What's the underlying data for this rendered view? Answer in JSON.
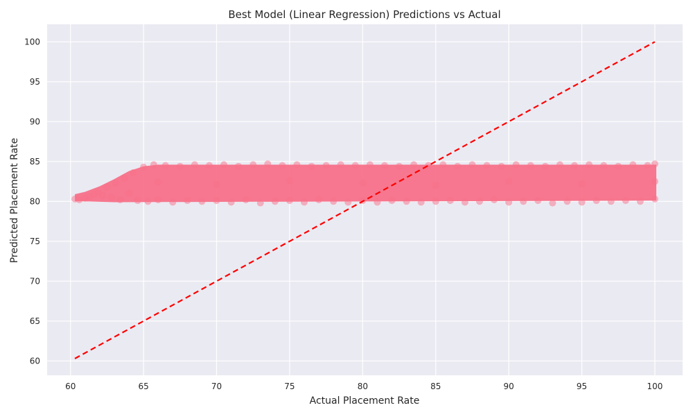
{
  "chart_data": {
    "type": "scatter",
    "title": "Best Model (Linear Regression) Predictions vs Actual",
    "xlabel": "Actual Placement Rate",
    "ylabel": "Predicted Placement Rate",
    "xlim": [
      58.4,
      101.9
    ],
    "ylim": [
      58.2,
      102.2
    ],
    "xticks": [
      60,
      65,
      70,
      75,
      80,
      85,
      90,
      95,
      100
    ],
    "yticks": [
      60,
      65,
      70,
      75,
      80,
      85,
      90,
      95,
      100
    ],
    "grid": true,
    "background_color": "#eaeaf2",
    "grid_color": "#ffffff",
    "point_color": "#f77189",
    "reference_line_color": "#ff0000",
    "series": [
      {
        "kind": "points",
        "alpha": 0.5,
        "points": [
          [
            60.3,
            80.3
          ],
          [
            60.6,
            80.2
          ],
          [
            61.0,
            80.4
          ],
          [
            61.3,
            80.6
          ],
          [
            61.6,
            80.9
          ],
          [
            61.9,
            81.1
          ],
          [
            62.2,
            80.7
          ],
          [
            62.5,
            81.8
          ],
          [
            62.8,
            80.5
          ],
          [
            63.1,
            82.3
          ],
          [
            63.4,
            80.2
          ],
          [
            63.7,
            82.9
          ],
          [
            64.0,
            81.0
          ],
          [
            64.3,
            83.6
          ],
          [
            64.6,
            80.1
          ],
          [
            65.0,
            84.3
          ],
          [
            65.3,
            80.0
          ],
          [
            65.7,
            84.6
          ],
          [
            66.0,
            80.2
          ],
          [
            66.5,
            84.5
          ],
          [
            67.0,
            79.9
          ],
          [
            67.5,
            84.4
          ],
          [
            68.0,
            80.1
          ],
          [
            68.5,
            84.6
          ],
          [
            69.0,
            80.0
          ],
          [
            69.5,
            84.5
          ],
          [
            70.0,
            80.1
          ],
          [
            70.5,
            84.6
          ],
          [
            71.0,
            79.9
          ],
          [
            71.5,
            84.4
          ],
          [
            72.0,
            80.2
          ],
          [
            72.5,
            84.6
          ],
          [
            73.0,
            79.8
          ],
          [
            73.5,
            84.7
          ],
          [
            74.0,
            80.0
          ],
          [
            74.5,
            84.5
          ],
          [
            75.0,
            80.1
          ],
          [
            75.5,
            84.6
          ],
          [
            76.0,
            79.9
          ],
          [
            76.5,
            84.4
          ],
          [
            77.0,
            80.2
          ],
          [
            77.5,
            84.5
          ],
          [
            78.0,
            80.0
          ],
          [
            78.5,
            84.6
          ],
          [
            79.0,
            79.9
          ],
          [
            79.5,
            84.5
          ],
          [
            80.0,
            80.1
          ],
          [
            80.5,
            84.6
          ],
          [
            81.0,
            79.9
          ],
          [
            81.5,
            84.5
          ],
          [
            82.0,
            80.1
          ],
          [
            82.5,
            84.4
          ],
          [
            83.0,
            80.0
          ],
          [
            83.5,
            84.6
          ],
          [
            84.0,
            79.9
          ],
          [
            84.5,
            84.5
          ],
          [
            85.0,
            80.0
          ],
          [
            85.5,
            84.6
          ],
          [
            86.0,
            80.1
          ],
          [
            86.5,
            84.4
          ],
          [
            87.0,
            79.9
          ],
          [
            87.5,
            84.6
          ],
          [
            88.0,
            80.0
          ],
          [
            88.5,
            84.5
          ],
          [
            89.0,
            80.2
          ],
          [
            89.5,
            84.4
          ],
          [
            90.0,
            79.9
          ],
          [
            90.5,
            84.6
          ],
          [
            91.0,
            80.0
          ],
          [
            91.5,
            84.5
          ],
          [
            92.0,
            80.1
          ],
          [
            92.5,
            84.4
          ],
          [
            93.0,
            79.8
          ],
          [
            93.5,
            84.6
          ],
          [
            94.0,
            80.0
          ],
          [
            94.5,
            84.5
          ],
          [
            95.0,
            79.9
          ],
          [
            95.5,
            84.6
          ],
          [
            96.0,
            80.1
          ],
          [
            96.5,
            84.5
          ],
          [
            97.0,
            80.0
          ],
          [
            97.5,
            84.4
          ],
          [
            98.0,
            80.1
          ],
          [
            98.5,
            84.6
          ],
          [
            99.0,
            80.0
          ],
          [
            99.5,
            84.5
          ],
          [
            100.0,
            80.3
          ],
          [
            100.0,
            84.7
          ],
          [
            100.0,
            82.5
          ],
          [
            66.0,
            82.4
          ],
          [
            70.0,
            82.1
          ],
          [
            75.0,
            82.6
          ],
          [
            80.0,
            82.3
          ],
          [
            85.0,
            82.0
          ],
          [
            90.0,
            82.5
          ],
          [
            95.0,
            82.2
          ]
        ]
      },
      {
        "kind": "reference_line",
        "style": "dashed",
        "points": [
          [
            60.3,
            60.3
          ],
          [
            100.0,
            100.0
          ]
        ]
      }
    ]
  }
}
